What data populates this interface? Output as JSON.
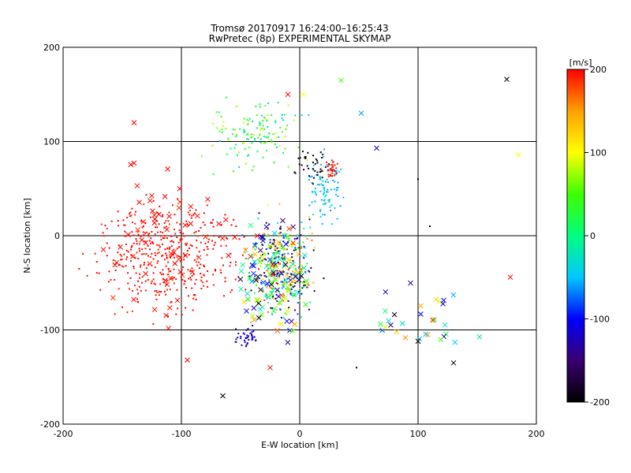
{
  "chart_data": {
    "type": "scatter",
    "title": [
      "Tromsø 20170917 16:24:00–16:25:43",
      "RwPretec (8p) EXPERIMENTAL SKYMAP"
    ],
    "xlabel": "E-W location [km]",
    "ylabel": "N-S location [km]",
    "xlim": [
      -200,
      200
    ],
    "ylim": [
      -200,
      200
    ],
    "xticks": [
      "-200",
      "-100",
      "0",
      "100",
      "200"
    ],
    "yticks": [
      "-200",
      "-100",
      "0",
      "100",
      "200"
    ],
    "grid": "on",
    "colorbar": {
      "label": "[m/s]",
      "range": [
        -200,
        200
      ],
      "ticks": [
        "-200",
        "-100",
        "0",
        "100",
        "200"
      ],
      "palette": [
        "#000000",
        "#3a0070",
        "#0000ff",
        "#00c8ff",
        "#00ff7f",
        "#3cff00",
        "#ffff00",
        "#ffa000",
        "#ff0000"
      ]
    },
    "clusters": [
      {
        "name": "red-west-dots",
        "marker": "dot",
        "count": 430,
        "x": [
          -200,
          -25
        ],
        "y": [
          -100,
          60
        ],
        "color_value": 200
      },
      {
        "name": "red-west-cross",
        "marker": "x",
        "count": 60,
        "x": [
          -195,
          -30
        ],
        "y": [
          -135,
          120
        ],
        "color_value": 200
      },
      {
        "name": "mixed-core",
        "marker": "dot",
        "count": 380,
        "x": [
          -55,
          25
        ],
        "y": [
          -105,
          40
        ],
        "color_value": [
          -200,
          200
        ]
      },
      {
        "name": "mixed-core-cross",
        "marker": "x",
        "count": 120,
        "x": [
          -60,
          20
        ],
        "y": [
          -125,
          40
        ],
        "color_value": [
          -200,
          200
        ]
      },
      {
        "name": "cyan-north",
        "marker": "dot",
        "count": 90,
        "x": [
          0,
          40
        ],
        "y": [
          0,
          100
        ],
        "color_value": -50
      },
      {
        "name": "arc-north",
        "marker": "dot",
        "count": 140,
        "x": [
          -95,
          20
        ],
        "y": [
          60,
          160
        ],
        "color_value": [
          -50,
          100
        ]
      },
      {
        "name": "black-north",
        "marker": "dot",
        "count": 40,
        "x": [
          -10,
          35
        ],
        "y": [
          50,
          100
        ],
        "color_value": -200
      },
      {
        "name": "red-northeast",
        "marker": "dot",
        "count": 30,
        "x": [
          20,
          35
        ],
        "y": [
          55,
          85
        ],
        "color_value": 200
      },
      {
        "name": "east-tail",
        "marker": "x",
        "count": 30,
        "x": [
          40,
          175
        ],
        "y": [
          -135,
          -35
        ],
        "color_value": [
          -200,
          200
        ]
      },
      {
        "name": "blue-violet-south",
        "marker": "dot",
        "count": 40,
        "x": [
          -60,
          -30
        ],
        "y": [
          -125,
          -90
        ],
        "color_value": -120
      }
    ],
    "isolated_points": [
      {
        "x": 175,
        "y": 166,
        "marker": "x",
        "color_value": -200
      },
      {
        "x": 185,
        "y": 86,
        "marker": "x",
        "color_value": 100
      },
      {
        "x": 35,
        "y": 165,
        "marker": "x",
        "color_value": 50
      },
      {
        "x": 52,
        "y": 130,
        "marker": "x",
        "color_value": -60
      },
      {
        "x": 65,
        "y": 93,
        "marker": "x",
        "color_value": -130
      },
      {
        "x": -140,
        "y": 120,
        "marker": "x",
        "color_value": 200
      },
      {
        "x": -140,
        "y": 77,
        "marker": "x",
        "color_value": 200
      },
      {
        "x": -65,
        "y": -170,
        "marker": "x",
        "color_value": -200
      },
      {
        "x": 130,
        "y": -135,
        "marker": "x",
        "color_value": -200
      },
      {
        "x": 178,
        "y": -44,
        "marker": "x",
        "color_value": 200
      },
      {
        "x": -10,
        "y": 150,
        "marker": "x",
        "color_value": 200
      },
      {
        "x": 3,
        "y": 150,
        "marker": "x",
        "color_value": 100
      },
      {
        "x": -25,
        "y": -140,
        "marker": "x",
        "color_value": 200
      },
      {
        "x": -95,
        "y": -132,
        "marker": "x",
        "color_value": 200
      },
      {
        "x": 100,
        "y": -112,
        "marker": "x",
        "color_value": -200
      },
      {
        "x": 48,
        "y": -140,
        "marker": "dot",
        "color_value": -200
      },
      {
        "x": 110,
        "y": 10,
        "marker": "dot",
        "color_value": -200
      },
      {
        "x": 100,
        "y": 60,
        "marker": "dot",
        "color_value": -200
      }
    ]
  }
}
